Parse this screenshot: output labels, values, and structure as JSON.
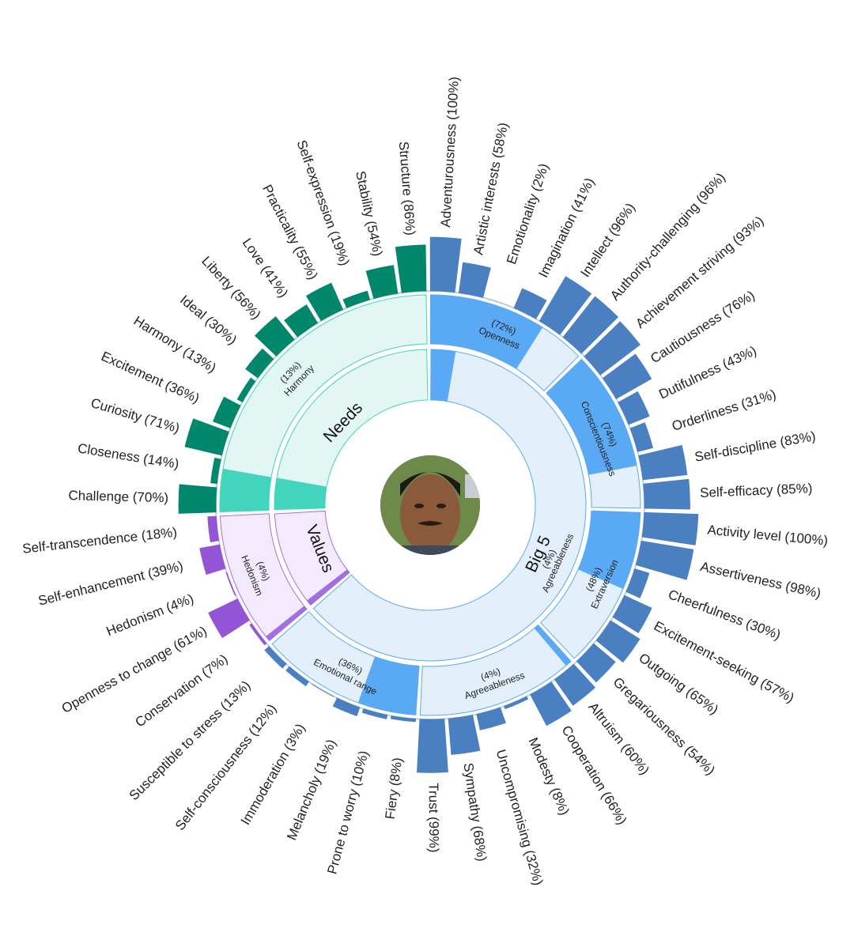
{
  "chart_data": {
    "type": "sunburst",
    "categories": [
      {
        "name": "Big 5",
        "color_main": "#5aa9f4",
        "color_light": "#e3f0fc",
        "color_bar": "#4a7fc1",
        "color_stroke": "#5aa9f4"
      },
      {
        "name": "Needs",
        "color_main": "#42d4bd",
        "color_light": "#e2f7f3",
        "color_bar": "#00876c",
        "color_stroke": "#42d4bd"
      },
      {
        "name": "Values",
        "color_main": "#a070e0",
        "color_light": "#f3eafd",
        "color_bar": "#9354d6",
        "color_stroke": "#a070e0"
      }
    ],
    "center_label": "Big 5",
    "traits": [
      {
        "group": "Big 5",
        "name": "Openness",
        "pct_text": "(72%)",
        "value": 72,
        "facets": [
          {
            "label": "Adventurousness (100%)",
            "value": 100
          },
          {
            "label": "Artistic interests (58%)",
            "value": 58
          },
          {
            "label": "Emotionality (2%)",
            "value": 2
          },
          {
            "label": "Imagination (41%)",
            "value": 41
          },
          {
            "label": "Intellect (96%)",
            "value": 96
          },
          {
            "label": "Authority-challenging (96%)",
            "value": 96
          }
        ]
      },
      {
        "group": "Big 5",
        "name": "Conscientiousness",
        "pct_text": "(74%)",
        "value": 74,
        "facets": [
          {
            "label": "Achievement striving (93%)",
            "value": 93
          },
          {
            "label": "Cautiousness (76%)",
            "value": 76
          },
          {
            "label": "Dutifulness (43%)",
            "value": 43
          },
          {
            "label": "Orderliness (31%)",
            "value": 31
          },
          {
            "label": "Self-discipline (83%)",
            "value": 83
          },
          {
            "label": "Self-efficacy (85%)",
            "value": 85
          }
        ]
      },
      {
        "group": "Big 5",
        "name": "Extraversion",
        "pct_text": "(48%)",
        "value": 48,
        "facets": [
          {
            "label": "Activity level (100%)",
            "value": 100
          },
          {
            "label": "Assertiveness (98%)",
            "value": 98
          },
          {
            "label": "Cheerfulness (30%)",
            "value": 30
          },
          {
            "label": "Excitement-seeking (57%)",
            "value": 57
          },
          {
            "label": "Outgoing (65%)",
            "value": 65
          },
          {
            "label": "Gregariousness (54%)",
            "value": 54
          }
        ]
      },
      {
        "group": "Big 5",
        "name": "Agreeableness",
        "pct_text": "(4%)",
        "value": 4,
        "facets": [
          {
            "label": "Altruism (60%)",
            "value": 60
          },
          {
            "label": "Cooperation (66%)",
            "value": 66
          },
          {
            "label": "Modesty (8%)",
            "value": 8
          },
          {
            "label": "Uncompromising (32%)",
            "value": 32
          },
          {
            "label": "Sympathy (68%)",
            "value": 68
          },
          {
            "label": "Trust (99%)",
            "value": 99
          }
        ]
      },
      {
        "group": "Big 5",
        "name": "Emotional range",
        "pct_text": "(36%)",
        "value": 36,
        "facets": [
          {
            "label": "Fiery (8%)",
            "value": 8
          },
          {
            "label": "Prone to worry (10%)",
            "value": 10
          },
          {
            "label": "Melancholy (19%)",
            "value": 19
          },
          {
            "label": "Immoderation (3%)",
            "value": 3
          },
          {
            "label": "Self-consciousness (12%)",
            "value": 12
          },
          {
            "label": "Susceptible to stress (13%)",
            "value": 13
          }
        ]
      },
      {
        "group": "Values",
        "name": "Hedonism",
        "pct_text": "(4%)",
        "value": 4,
        "facets": [
          {
            "label": "Conservation (7%)",
            "value": 7
          },
          {
            "label": "Openness to change (61%)",
            "value": 61
          },
          {
            "label": "Hedonism (4%)",
            "value": 4
          },
          {
            "label": "Self-enhancement (39%)",
            "value": 39
          },
          {
            "label": "Self-transcendence (18%)",
            "value": 18
          }
        ]
      },
      {
        "group": "Needs",
        "name": "Harmony",
        "pct_text": "(13%)",
        "value": 13,
        "facets": [
          {
            "label": "Challenge (70%)",
            "value": 70
          },
          {
            "label": "Closeness (14%)",
            "value": 14
          },
          {
            "label": "Curiosity (71%)",
            "value": 71
          },
          {
            "label": "Excitement (36%)",
            "value": 36
          },
          {
            "label": "Harmony (13%)",
            "value": 13
          },
          {
            "label": "Ideal (30%)",
            "value": 30
          },
          {
            "label": "Liberty (56%)",
            "value": 56
          },
          {
            "label": "Love (41%)",
            "value": 41
          },
          {
            "label": "Practicality (55%)",
            "value": 55
          },
          {
            "label": "Self-expression (19%)",
            "value": 19
          },
          {
            "label": "Stability (54%)",
            "value": 54
          },
          {
            "label": "Structure (86%)",
            "value": 86
          }
        ]
      }
    ],
    "groups": [
      {
        "name": "Big 5",
        "value": 4,
        "pct_text": "(4%)",
        "inner_label": "Agreeableness"
      },
      {
        "name": "Values",
        "value": 4
      },
      {
        "name": "Needs",
        "value": 13
      }
    ]
  },
  "avatar": {
    "alt": "profile photo"
  }
}
